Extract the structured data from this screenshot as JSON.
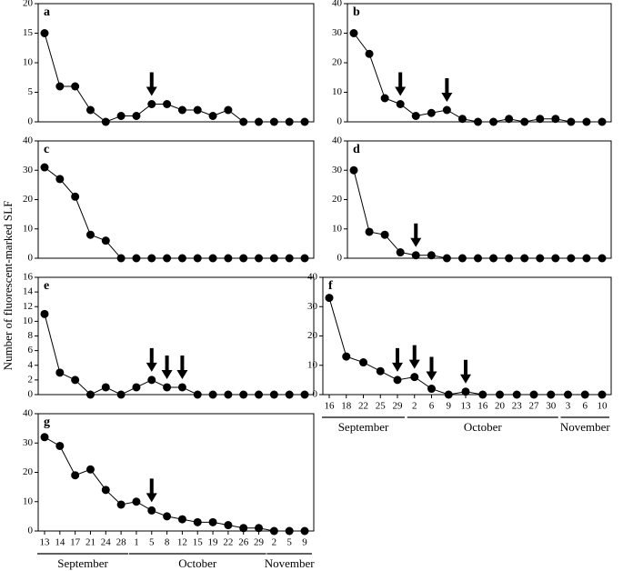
{
  "y_label": "Number of fluorescent-marked SLF",
  "chart_data": [
    {
      "type": "line",
      "title": "a",
      "ylim": [
        0,
        20
      ],
      "yticks": [
        0,
        5,
        10,
        15,
        20
      ],
      "color": "#000000",
      "values": [
        15,
        6,
        6,
        2,
        0,
        1,
        1,
        3,
        3,
        2,
        2,
        1,
        2,
        0,
        0,
        0,
        0,
        0
      ],
      "arrows": [
        7
      ]
    },
    {
      "type": "line",
      "title": "b",
      "ylim": [
        0,
        40
      ],
      "yticks": [
        0,
        10,
        20,
        30,
        40
      ],
      "color": "#000000",
      "values": [
        30,
        23,
        8,
        6,
        2,
        3,
        4,
        1,
        0,
        0,
        1,
        0,
        1,
        1,
        0,
        0,
        0
      ],
      "arrows": [
        3,
        6
      ]
    },
    {
      "type": "line",
      "title": "c",
      "ylim": [
        0,
        40
      ],
      "yticks": [
        0,
        10,
        20,
        30,
        40
      ],
      "color": "#000000",
      "values": [
        31,
        27,
        21,
        8,
        6,
        0,
        0,
        0,
        0,
        0,
        0,
        0,
        0,
        0,
        0,
        0,
        0,
        0
      ],
      "arrows": []
    },
    {
      "type": "line",
      "title": "d",
      "ylim": [
        0,
        40
      ],
      "yticks": [
        0,
        10,
        20,
        30,
        40
      ],
      "color": "#000000",
      "values": [
        30,
        9,
        8,
        2,
        1,
        1,
        0,
        0,
        0,
        0,
        0,
        0,
        0,
        0,
        0,
        0,
        0
      ],
      "arrows": [
        4
      ]
    },
    {
      "type": "line",
      "title": "e",
      "ylim": [
        0,
        16
      ],
      "yticks": [
        0,
        2,
        4,
        6,
        8,
        10,
        12,
        14,
        16
      ],
      "color": "#000000",
      "values": [
        11,
        3,
        2,
        0,
        1,
        0,
        1,
        2,
        1,
        1,
        0,
        0,
        0,
        0,
        0,
        0,
        0,
        0
      ],
      "arrows": [
        7,
        8,
        9
      ]
    },
    {
      "type": "line",
      "title": "f",
      "ylim": [
        0,
        40
      ],
      "yticks": [
        0,
        10,
        20,
        30,
        40
      ],
      "color": "#000000",
      "categories": [
        "16",
        "18",
        "22",
        "25",
        "29",
        "2",
        "6",
        "9",
        "13",
        "16",
        "20",
        "23",
        "27",
        "30",
        "3",
        "6",
        "10"
      ],
      "month_groups": [
        {
          "name": "September",
          "count": 5
        },
        {
          "name": "October",
          "count": 9
        },
        {
          "name": "November",
          "count": 3
        }
      ],
      "values": [
        33,
        13,
        11,
        8,
        5,
        6,
        2,
        0,
        1,
        0,
        0,
        0,
        0,
        0,
        0,
        0,
        0
      ],
      "arrows": [
        4,
        5,
        6,
        8
      ]
    },
    {
      "type": "line",
      "title": "g",
      "ylim": [
        0,
        40
      ],
      "yticks": [
        0,
        10,
        20,
        30,
        40
      ],
      "color": "#000000",
      "categories": [
        "13",
        "14",
        "17",
        "21",
        "24",
        "28",
        "1",
        "5",
        "8",
        "12",
        "15",
        "19",
        "22",
        "26",
        "29",
        "2",
        "5",
        "9"
      ],
      "month_groups": [
        {
          "name": "September",
          "count": 6
        },
        {
          "name": "October",
          "count": 9
        },
        {
          "name": "November",
          "count": 3
        }
      ],
      "values": [
        32,
        29,
        19,
        21,
        14,
        9,
        10,
        7,
        5,
        4,
        3,
        3,
        2,
        1,
        1,
        0,
        0,
        0
      ],
      "arrows": [
        7
      ]
    }
  ]
}
